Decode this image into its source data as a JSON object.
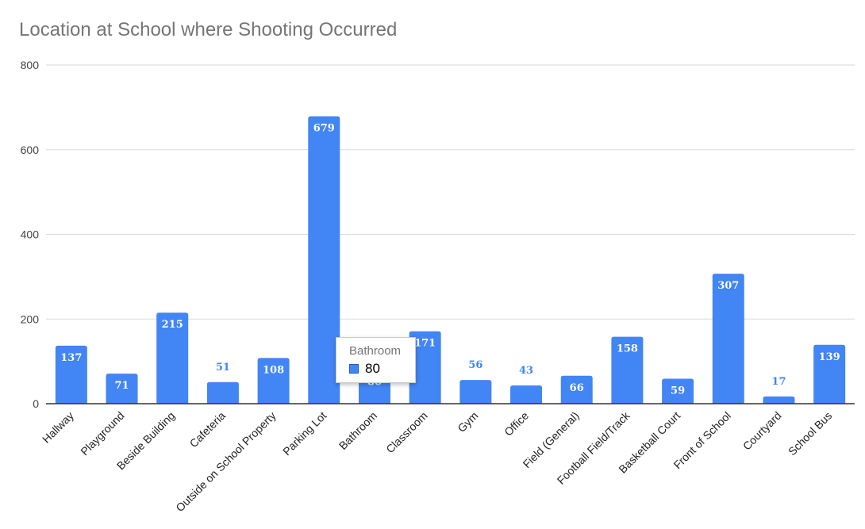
{
  "chart_data": {
    "type": "bar",
    "title": "Location at School where Shooting Occurred",
    "xlabel": "",
    "ylabel": "",
    "ylim": [
      0,
      800
    ],
    "yticks": [
      0,
      200,
      400,
      600,
      800
    ],
    "grid": true,
    "legend": "none",
    "categories": [
      "Hallway",
      "Playground",
      "Beside Building",
      "Cafeteria",
      "Outside on School Property",
      "Parking Lot",
      "Bathroom",
      "Classroom",
      "Gym",
      "Office",
      "Field (General)",
      "Football Field/Track",
      "Basketball Court",
      "Front of School",
      "Courtyard",
      "School Bus"
    ],
    "values": [
      137,
      71,
      215,
      51,
      108,
      679,
      80,
      171,
      56,
      43,
      66,
      158,
      59,
      307,
      17,
      139
    ],
    "colors": {
      "bar": "#4285f4",
      "grid": "#d9d9d9",
      "axis": "#333333",
      "label_inside": "#ffffff",
      "label_outside": "#4285f4"
    }
  },
  "tooltip": {
    "category": "Bathroom",
    "value": "80",
    "swatch_color": "#4285f4"
  }
}
